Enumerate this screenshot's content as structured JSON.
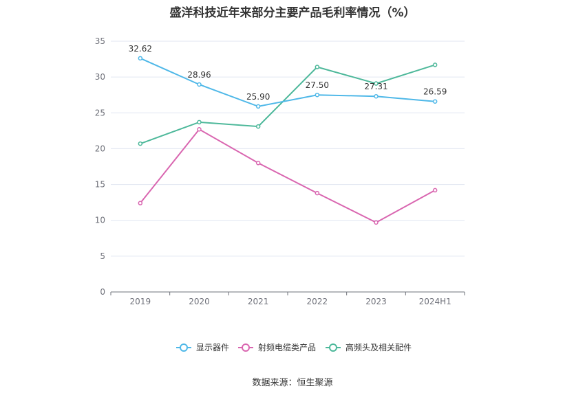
{
  "chart_data": {
    "type": "line",
    "title": "盛洋科技近年来部分主要产品毛利率情况（%）",
    "categories": [
      "2019",
      "2020",
      "2021",
      "2022",
      "2023",
      "2024H1"
    ],
    "ylim": [
      0,
      35
    ],
    "yticks": [
      0,
      5,
      10,
      15,
      20,
      25,
      30,
      35
    ],
    "grid": true,
    "legend_position": "bottom",
    "series": [
      {
        "name": "显示器件",
        "color": "#4fb8e8",
        "values": [
          32.62,
          28.96,
          25.9,
          27.5,
          27.31,
          26.59
        ],
        "labels": [
          "32.62",
          "28.96",
          "25.90",
          "27.50",
          "27.31",
          "26.59"
        ]
      },
      {
        "name": "射频电缆类产品",
        "color": "#d966b0",
        "values": [
          12.4,
          22.7,
          18.0,
          13.8,
          9.7,
          14.2
        ]
      },
      {
        "name": "高频头及相关配件",
        "color": "#4db89a",
        "values": [
          20.7,
          23.7,
          23.1,
          31.4,
          29.1,
          31.7
        ]
      }
    ],
    "source": "数据来源：恒生聚源"
  }
}
